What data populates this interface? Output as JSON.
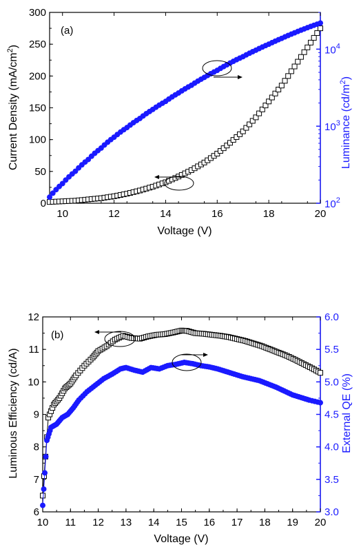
{
  "chart_data": [
    {
      "type": "scatter",
      "panel_label": "(a)",
      "xlabel": "Voltage (V)",
      "ylabel_left": "Current Density (mA/cm",
      "ylabel_left_sup": "2",
      "ylabel_left_end": ")",
      "ylabel_right": "Luminance (cd/m",
      "ylabel_right_sup": "2",
      "ylabel_right_end": ")",
      "xlim": [
        9.5,
        20
      ],
      "ylim_left": [
        0,
        300
      ],
      "ylim_right": [
        100,
        30000
      ],
      "right_scale": "log",
      "x_ticks": [
        "10",
        "12",
        "14",
        "16",
        "18",
        "20"
      ],
      "y_left_ticks": [
        "0",
        "50",
        "100",
        "150",
        "200",
        "250",
        "300"
      ],
      "y_right_ticks": [
        {
          "base": "10",
          "exp": "2"
        },
        {
          "base": "10",
          "exp": "3"
        },
        {
          "base": "10",
          "exp": "4"
        }
      ],
      "series": [
        {
          "axis": "left",
          "marker": "open-square",
          "color": "#000000",
          "x": [
            9.5,
            10.0,
            10.5,
            11.0,
            11.5,
            12.0,
            12.5,
            13.0,
            13.5,
            14.0,
            14.5,
            15.0,
            15.5,
            16.0,
            16.5,
            17.0,
            17.5,
            18.0,
            18.5,
            19.0,
            19.5,
            20.0
          ],
          "y": [
            2,
            3,
            4,
            6,
            8,
            11,
            15,
            20,
            26,
            33,
            42,
            52,
            64,
            78,
            95,
            113,
            135,
            160,
            185,
            215,
            245,
            275
          ]
        },
        {
          "axis": "right",
          "marker": "filled-circle",
          "color": "#1a1aff",
          "x": [
            9.5,
            10.0,
            10.5,
            11.0,
            11.5,
            12.0,
            12.5,
            13.0,
            13.5,
            14.0,
            14.5,
            15.0,
            15.5,
            16.0,
            16.5,
            17.0,
            17.5,
            18.0,
            18.5,
            19.0,
            19.5,
            20.0
          ],
          "y": [
            120,
            180,
            260,
            370,
            520,
            720,
            960,
            1260,
            1650,
            2100,
            2700,
            3400,
            4300,
            5300,
            6600,
            8000,
            9700,
            11600,
            13800,
            16300,
            19000,
            21800
          ]
        }
      ]
    },
    {
      "type": "scatter",
      "panel_label": "(b)",
      "xlabel": "Voltage (V)",
      "ylabel_left": "Luminous Efficiency (cd/A)",
      "ylabel_right": "External QE (%)",
      "xlim": [
        10,
        20
      ],
      "ylim_left": [
        6,
        12
      ],
      "ylim_right": [
        3.0,
        6.0
      ],
      "x_ticks": [
        "10",
        "11",
        "12",
        "13",
        "14",
        "15",
        "16",
        "17",
        "18",
        "19",
        "20"
      ],
      "y_left_ticks": [
        "6",
        "7",
        "8",
        "9",
        "10",
        "11",
        "12"
      ],
      "y_right_ticks": [
        "3.0",
        "3.5",
        "4.0",
        "4.5",
        "5.0",
        "5.5",
        "6.0"
      ],
      "series": [
        {
          "axis": "left",
          "marker": "open-square",
          "color": "#000000",
          "x": [
            10.0,
            10.2,
            10.4,
            10.6,
            10.8,
            11.0,
            11.2,
            11.5,
            11.8,
            12.0,
            12.3,
            12.6,
            12.9,
            13.2,
            13.5,
            13.8,
            14.1,
            14.4,
            14.7,
            15.0,
            15.2,
            15.5,
            15.8,
            16.1,
            16.4,
            16.7,
            17.0,
            17.3,
            17.6,
            17.9,
            18.2,
            18.5,
            18.8,
            19.1,
            19.4,
            19.7,
            20.0
          ],
          "y": [
            6.5,
            8.9,
            9.3,
            9.5,
            9.8,
            9.95,
            10.2,
            10.5,
            10.75,
            10.95,
            11.1,
            11.3,
            11.42,
            11.35,
            11.33,
            11.4,
            11.45,
            11.47,
            11.52,
            11.58,
            11.57,
            11.5,
            11.48,
            11.45,
            11.42,
            11.38,
            11.32,
            11.26,
            11.18,
            11.1,
            11.0,
            10.9,
            10.8,
            10.68,
            10.55,
            10.42,
            10.28
          ]
        },
        {
          "axis": "right",
          "marker": "filled-circle",
          "color": "#1a1aff",
          "x": [
            10.0,
            10.15,
            10.3,
            10.5,
            10.7,
            10.9,
            11.1,
            11.3,
            11.6,
            11.9,
            12.2,
            12.5,
            12.8,
            13.0,
            13.3,
            13.6,
            13.9,
            14.2,
            14.5,
            14.8,
            15.1,
            15.4,
            15.7,
            16.0,
            16.3,
            16.6,
            16.9,
            17.2,
            17.5,
            17.8,
            18.1,
            18.4,
            18.7,
            19.0,
            19.3,
            19.6,
            20.0
          ],
          "y": [
            3.1,
            4.1,
            4.3,
            4.35,
            4.45,
            4.5,
            4.6,
            4.72,
            4.85,
            4.95,
            5.05,
            5.12,
            5.2,
            5.22,
            5.18,
            5.15,
            5.22,
            5.2,
            5.25,
            5.27,
            5.3,
            5.28,
            5.25,
            5.23,
            5.2,
            5.16,
            5.12,
            5.08,
            5.05,
            5.02,
            4.97,
            4.92,
            4.86,
            4.8,
            4.76,
            4.72,
            4.68
          ]
        }
      ]
    }
  ]
}
